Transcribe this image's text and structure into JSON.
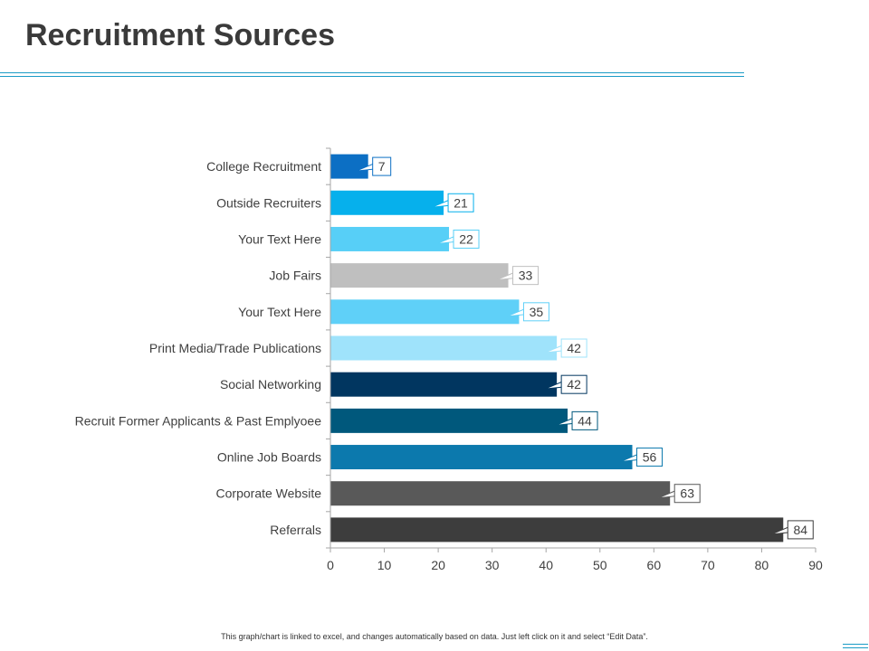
{
  "slide": {
    "title": "Recruitment Sources",
    "footnote": "This graph/chart is linked to excel, and changes automatically based on data. Just left click on it and select “Edit Data”.",
    "accent_color": "#1a9bc6"
  },
  "chart_data": {
    "type": "bar",
    "orientation": "horizontal",
    "title": "",
    "xlabel": "",
    "ylabel": "",
    "xlim": [
      0,
      90
    ],
    "x_ticks": [
      "0",
      "10",
      "20",
      "30",
      "40",
      "50",
      "60",
      "70",
      "80",
      "90"
    ],
    "grid": false,
    "legend": "none",
    "categories": [
      "College Recruitment",
      "Outside Recruiters",
      "Your Text Here",
      "Job Fairs",
      "Your Text Here",
      "Print Media/Trade Publications",
      "Social Networking",
      "Recruit Former Applicants & Past Emplyoee",
      "Online Job Boards",
      "Corporate Website",
      "Referrals"
    ],
    "values": [
      7,
      21,
      22,
      33,
      35,
      42,
      42,
      44,
      56,
      63,
      84
    ],
    "data_labels": [
      "7",
      "21",
      "22",
      "33",
      "35",
      "42",
      "42",
      "44",
      "56",
      "63",
      "84"
    ],
    "colors": [
      "#0c6fc4",
      "#06b0ec",
      "#57cff7",
      "#bfbfbf",
      "#5fd0f8",
      "#9fe3fb",
      "#013660",
      "#00587c",
      "#0c79ad",
      "#595959",
      "#3d3d3d"
    ]
  }
}
